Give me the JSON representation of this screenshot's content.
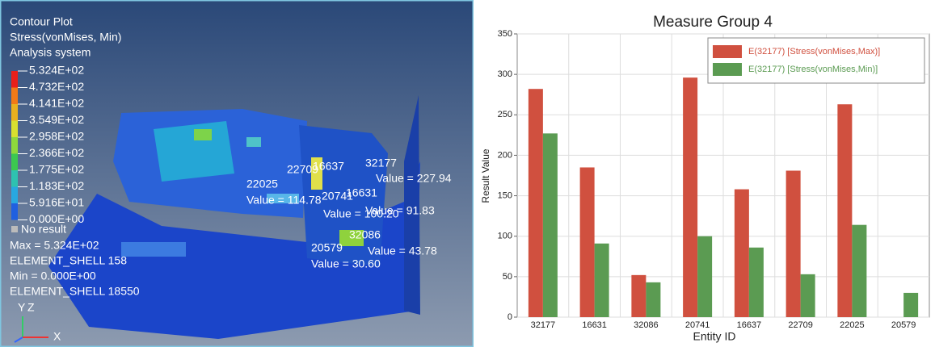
{
  "viewport": {
    "title": "Contour Plot",
    "result": "Stress(vonMises, Min)",
    "system": "Analysis system",
    "legend": [
      "5.324E+02",
      "4.732E+02",
      "4.141E+02",
      "3.549E+02",
      "2.958E+02",
      "2.366E+02",
      "1.775E+02",
      "1.183E+02",
      "5.916E+01",
      "0.000E+00"
    ],
    "no_result": "No result",
    "max": "Max = 5.324E+02",
    "max_element": "ELEMENT_SHELL 158",
    "min": "Min = 0.000E+00",
    "min_element": "ELEMENT_SHELL 18550",
    "annotations": [
      {
        "id": "32177",
        "value": "Value = 227.94"
      },
      {
        "id": "16631",
        "value": "Value = 91.83"
      },
      {
        "id": "32086",
        "value": "Value = 43.78"
      },
      {
        "id": "20741",
        "value": "Value = 100.20"
      },
      {
        "id": "16637"
      },
      {
        "id": "22709"
      },
      {
        "id": "22025",
        "value": "Value = 114.78"
      },
      {
        "id": "20579",
        "value": "Value = 30.60"
      }
    ],
    "axes": [
      "Y",
      "Z",
      "X"
    ]
  },
  "chart_data": {
    "type": "bar",
    "title": "Measure Group 4",
    "x_label": "Entity ID",
    "y_label": "Result Value",
    "categories": [
      "32177",
      "16631",
      "32086",
      "20741",
      "16637",
      "22709",
      "22025",
      "20579"
    ],
    "series": [
      {
        "name": "E(32177) [Stress(vonMises,Max)]",
        "color": "#d0503f",
        "values": [
          282,
          185,
          52,
          296,
          158,
          181,
          263,
          null
        ]
      },
      {
        "name": "E(32177) [Stress(vonMises,Min)]",
        "color": "#5b9b52",
        "values": [
          227,
          91,
          43,
          100,
          86,
          53,
          114,
          30
        ]
      }
    ],
    "ylim": [
      0,
      350
    ],
    "yticks": [
      0,
      50,
      100,
      150,
      200,
      250,
      300,
      350
    ],
    "grid": true,
    "legend": "top-right"
  }
}
